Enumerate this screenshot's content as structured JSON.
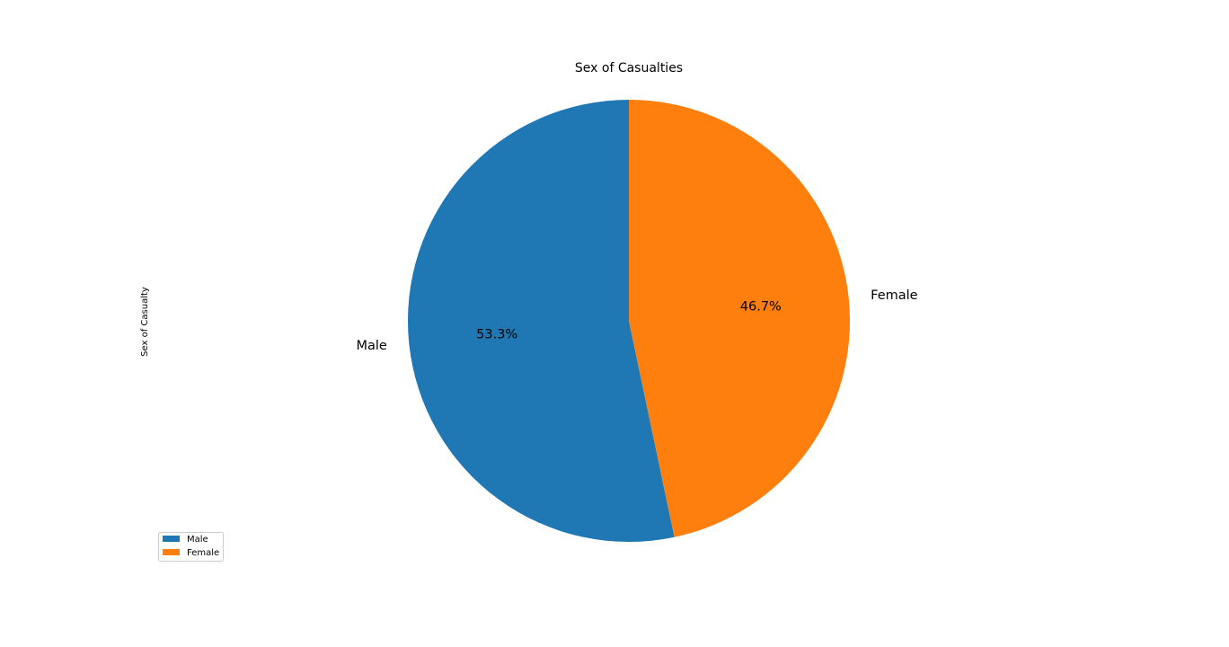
{
  "chart_data": {
    "type": "pie",
    "title": "Sex of Casualties",
    "ylabel": "Sex of Casualty",
    "categories": [
      "Male",
      "Female"
    ],
    "values": [
      53.3,
      46.7
    ],
    "value_labels": [
      "53.3%",
      "46.7%"
    ],
    "colors": [
      "#1f77b4",
      "#ff7f0e"
    ],
    "start_angle_deg": 90,
    "direction": "counterclockwise",
    "legend": {
      "placement": "lower-left",
      "entries": [
        "Male",
        "Female"
      ]
    }
  }
}
